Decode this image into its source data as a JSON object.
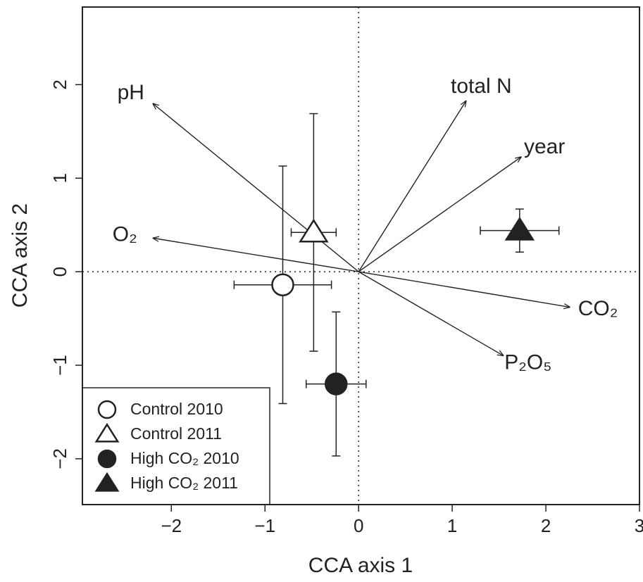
{
  "chart_data": {
    "type": "biplot",
    "xlabel": "CCA axis 1",
    "ylabel": "CCA axis 2",
    "xlim": [
      -2.95,
      3.0
    ],
    "ylim": [
      -2.49,
      2.83
    ],
    "xticks": [
      {
        "value": -2,
        "label": "−2"
      },
      {
        "value": -1,
        "label": "−1"
      },
      0,
      1,
      2,
      3
    ],
    "yticks": [
      {
        "value": -2,
        "label": "−2"
      },
      {
        "value": -1,
        "label": "−1"
      },
      0,
      1,
      2
    ],
    "legend": "bottom-left",
    "series": [
      {
        "name": "Control 2010",
        "marker": "circle",
        "filled": false,
        "color": "#222222",
        "x": -0.81,
        "y": -0.14,
        "xerr": 0.52,
        "yerr": 1.27
      },
      {
        "name": "Control 2011",
        "marker": "triangle",
        "filled": false,
        "color": "#222222",
        "x": -0.48,
        "y": 0.42,
        "xerr": 0.24,
        "yerr": 1.27
      },
      {
        "name": "High CO₂ 2010",
        "marker": "circle",
        "filled": true,
        "color": "#222222",
        "x": -0.24,
        "y": -1.2,
        "xerr": 0.32,
        "yerr": 0.77
      },
      {
        "name": "High CO₂ 2011",
        "marker": "triangle",
        "filled": true,
        "color": "#222222",
        "x": 1.72,
        "y": 0.44,
        "xerr": 0.42,
        "yerr": 0.23
      }
    ],
    "vectors": [
      {
        "name": "pH",
        "x": -2.2,
        "y": 1.8
      },
      {
        "name": "total N",
        "x": 1.15,
        "y": 1.83
      },
      {
        "name": "year",
        "x": 1.74,
        "y": 1.23
      },
      {
        "name": "O₂",
        "x": -2.2,
        "y": 0.36
      },
      {
        "name": "CO₂",
        "x": 2.26,
        "y": -0.38
      },
      {
        "name": "P₂O₅",
        "x": 1.55,
        "y": -0.9
      }
    ]
  }
}
